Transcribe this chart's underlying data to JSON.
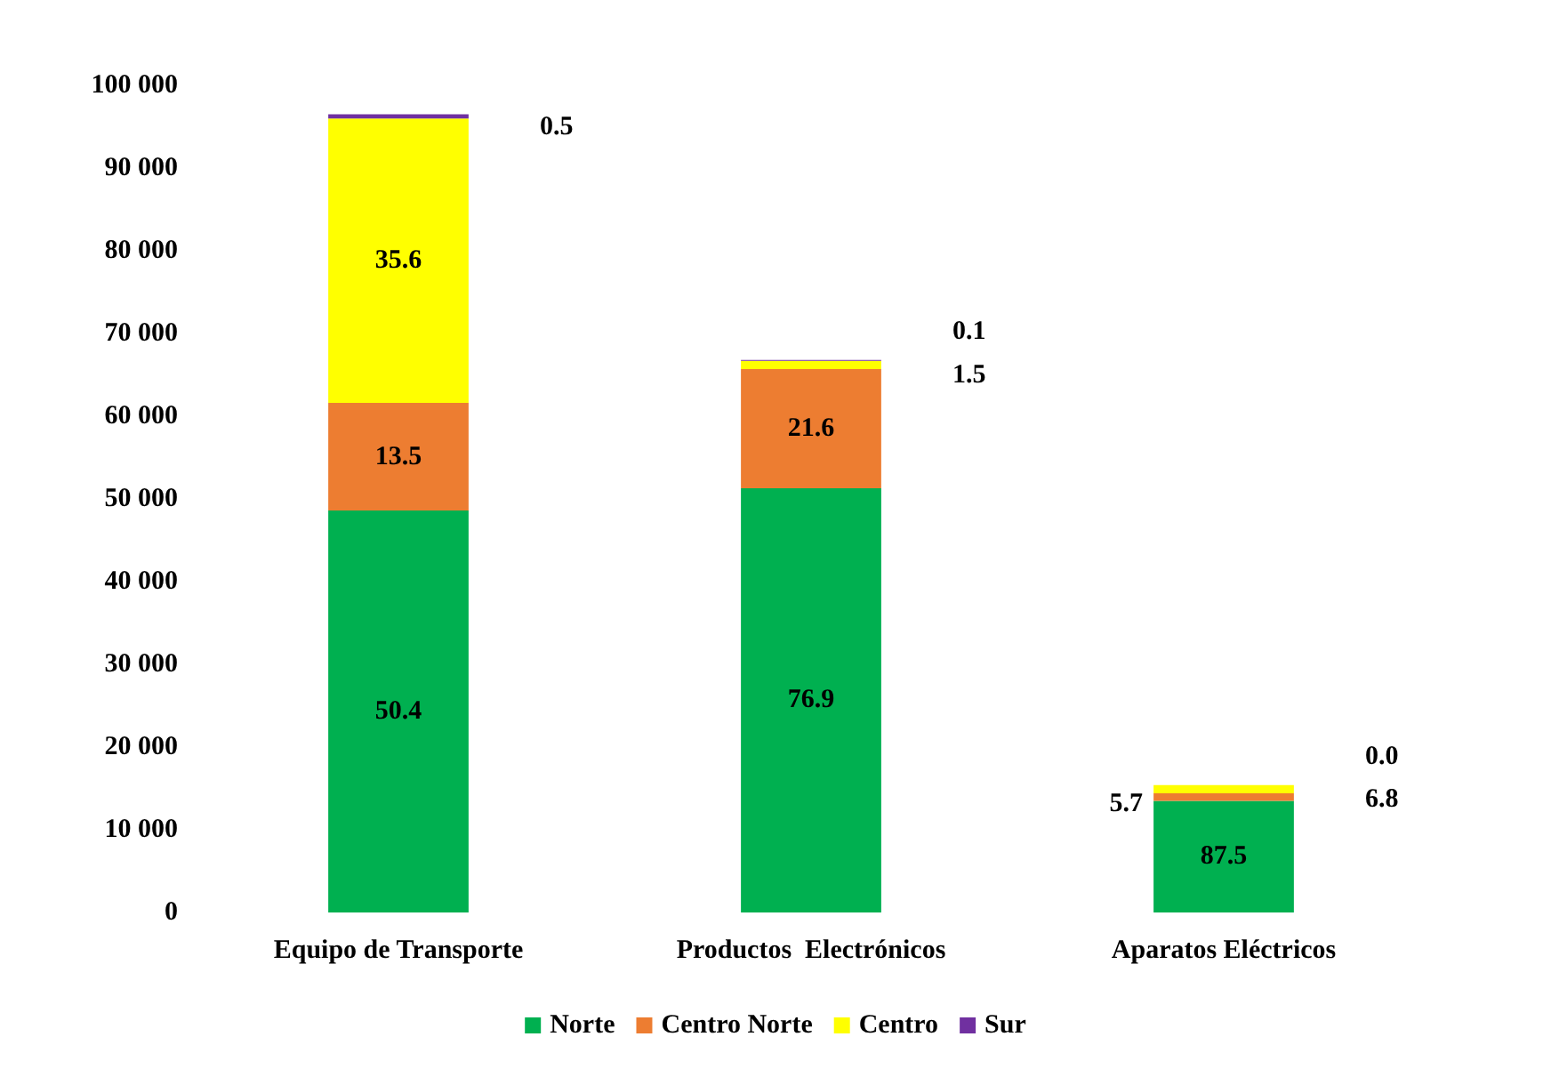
{
  "chart_data": {
    "type": "bar",
    "stacked": true,
    "categories": [
      "Equipo de Transporte",
      "Productos  Electrónicos",
      "Aparatos Eléctricos"
    ],
    "series": [
      {
        "name": "Norte",
        "color": "#00b050",
        "values": [
          48600,
          51300,
          13500
        ]
      },
      {
        "name": "Centro Norte",
        "color": "#ed7d31",
        "values": [
          13000,
          14400,
          900
        ]
      },
      {
        "name": "Centro",
        "color": "#ffff00",
        "values": [
          34400,
          1000,
          1000
        ]
      },
      {
        "name": "Sur",
        "color": "#7030a0",
        "values": [
          500,
          100,
          0
        ]
      }
    ],
    "annotations": [
      "50.4",
      "76.9",
      "87.5",
      "13.5",
      "21.6",
      "5.7",
      "35.6",
      "1.5",
      "6.8",
      "0.5",
      "0.1",
      "0.0"
    ],
    "ylim": [
      0,
      100000
    ],
    "yticks": [
      {
        "value": 0,
        "label": "0"
      },
      {
        "value": 10000,
        "label": "10 000"
      },
      {
        "value": 20000,
        "label": "20 000"
      },
      {
        "value": 30000,
        "label": "30 000"
      },
      {
        "value": 40000,
        "label": "40 000"
      },
      {
        "value": 50000,
        "label": "50 000"
      },
      {
        "value": 60000,
        "label": "60 000"
      },
      {
        "value": 70000,
        "label": "70 000"
      },
      {
        "value": 80000,
        "label": "80 000"
      },
      {
        "value": 90000,
        "label": "90 000"
      },
      {
        "value": 100000,
        "label": "100 000"
      }
    ],
    "grid": false,
    "legend": "bottom"
  }
}
